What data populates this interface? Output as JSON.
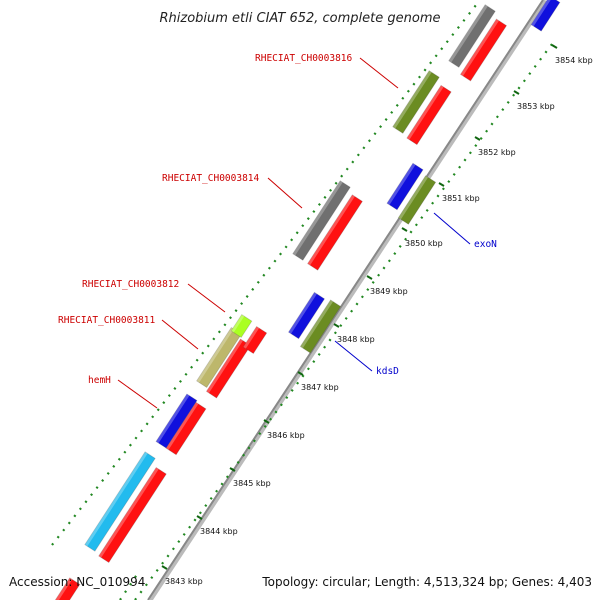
{
  "title": "Rhizobium etli CIAT 652, complete genome",
  "footer": {
    "accession": "Accession: NC_010994",
    "topology": "Topology: circular; Length: 4,513,324 bp; Genes: 4,403"
  },
  "colors": {
    "background": "#ffffff",
    "backbone": "#999999",
    "ticks": "#228822",
    "label_red": "#cc0000",
    "label_blue": "#0000cc"
  },
  "scale": {
    "unit": "kbp",
    "ticks": [
      {
        "label": "3843 kbp"
      },
      {
        "label": "3844 kbp"
      },
      {
        "label": "3845 kbp"
      },
      {
        "label": "3846 kbp"
      },
      {
        "label": "3847 kbp"
      },
      {
        "label": "3848 kbp"
      },
      {
        "label": "3849 kbp"
      },
      {
        "label": "3850 kbp"
      },
      {
        "label": "3851 kbp"
      },
      {
        "label": "3852 kbp"
      },
      {
        "label": "3853 kbp"
      },
      {
        "label": "3854 kbp"
      }
    ]
  },
  "gene_labels": [
    {
      "name": "RHECIAT_CH0003816",
      "color": "#cc0000"
    },
    {
      "name": "RHECIAT_CH0003814",
      "color": "#cc0000"
    },
    {
      "name": "RHECIAT_CH0003812",
      "color": "#cc0000"
    },
    {
      "name": "RHECIAT_CH0003811",
      "color": "#cc0000"
    },
    {
      "name": "hemH",
      "color": "#cc0000"
    },
    {
      "name": "exoN",
      "color": "#0000cc"
    },
    {
      "name": "kdsD",
      "color": "#0000cc"
    }
  ],
  "feature_colors": {
    "cds": "#ff1111",
    "gray": "#707070",
    "olive": "#6b8c22",
    "blue": "#1010dd",
    "cyan": "#22bbee",
    "khaki": "#bdb76b",
    "lime": "#aaff22"
  }
}
